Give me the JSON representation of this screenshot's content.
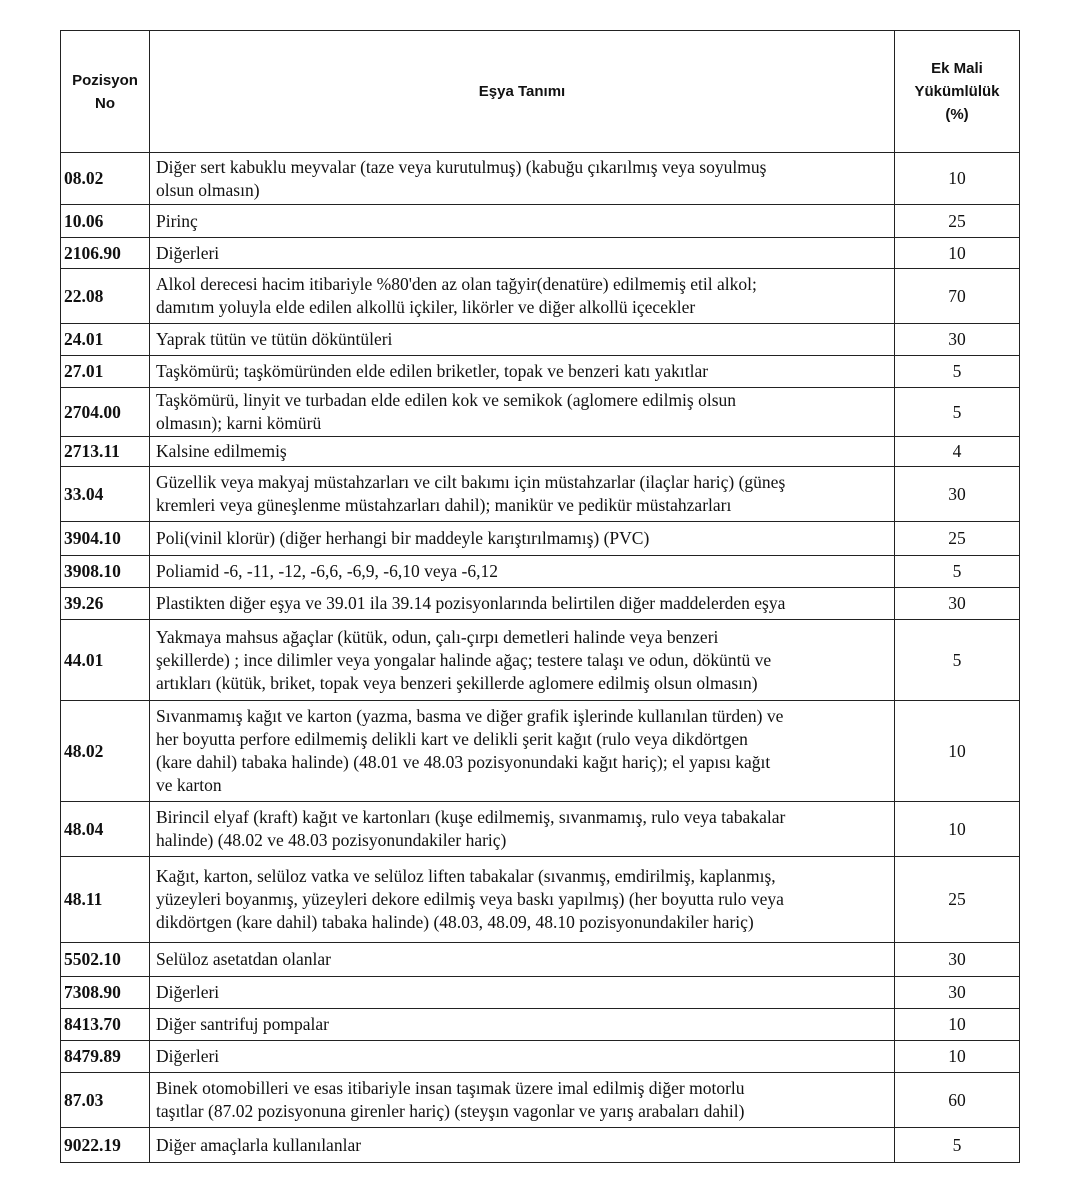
{
  "header": {
    "position_no": "Pozisyon No",
    "description": "Eşya Tanımı",
    "additional_liability": "Ek Mali Yükümlülük (%)"
  },
  "rows": [
    {
      "pos": "08.02",
      "desc": [
        "Diğer sert kabuklu meyvalar (taze veya kurutulmuş) (kabuğu çıkarılmış veya soyulmuş",
        "olsun olmasın)"
      ],
      "pct": "10"
    },
    {
      "pos": "10.06",
      "desc": [
        "Pirinç"
      ],
      "pct": "25"
    },
    {
      "pos": "2106.90",
      "desc": [
        "Diğerleri"
      ],
      "pct": "10"
    },
    {
      "pos": "22.08",
      "desc": [
        "Alkol derecesi hacim itibariyle %80'den az olan tağyir(denatüre) edilmemiş etil alkol;",
        "damıtım yoluyla elde edilen alkollü içkiler, likörler ve diğer alkollü içecekler"
      ],
      "pct": "70"
    },
    {
      "pos": "24.01",
      "desc": [
        "Yaprak tütün ve tütün döküntüleri"
      ],
      "pct": "30"
    },
    {
      "pos": "27.01",
      "desc": [
        "Taşkömürü; taşkömüründen elde edilen briketler, topak ve benzeri katı yakıtlar"
      ],
      "pct": "5"
    },
    {
      "pos": "2704.00",
      "desc": [
        "Taşkömürü, linyit ve turbadan elde edilen kok ve semikok (aglomere edilmiş olsun",
        "olmasın); karni kömürü"
      ],
      "pct": "5"
    },
    {
      "pos": "2713.11",
      "desc": [
        "Kalsine edilmemiş"
      ],
      "pct": "4"
    },
    {
      "pos": "33.04",
      "desc": [
        "Güzellik veya makyaj müstahzarları ve cilt bakımı için müstahzarlar (ilaçlar hariç) (güneş",
        "kremleri veya güneşlenme müstahzarları dahil); manikür ve pedikür müstahzarları"
      ],
      "pct": "30"
    },
    {
      "pos": "3904.10",
      "desc": [
        "Poli(vinil klorür) (diğer herhangi bir maddeyle karıştırılmamış) (PVC)"
      ],
      "pct": "25"
    },
    {
      "pos": "3908.10",
      "desc": [
        "Poliamid -6, -11, -12, -6,6, -6,9, -6,10 veya -6,12"
      ],
      "pct": "5"
    },
    {
      "pos": "39.26",
      "desc": [
        "Plastikten diğer eşya ve 39.01 ila 39.14 pozisyonlarında belirtilen diğer maddelerden eşya"
      ],
      "pct": "30"
    },
    {
      "pos": "44.01",
      "desc": [
        "Yakmaya mahsus ağaçlar (kütük, odun, çalı-çırpı demetleri halinde veya benzeri",
        "şekillerde) ; ince dilimler veya yongalar halinde ağaç; testere talaşı ve odun, döküntü ve",
        "artıkları (kütük, briket, topak veya benzeri şekillerde aglomere edilmiş olsun olmasın)"
      ],
      "pct": "5"
    },
    {
      "pos": "48.02",
      "desc": [
        "Sıvanmamış kağıt ve karton (yazma, basma ve diğer grafik işlerinde kullanılan türden) ve",
        "her boyutta perfore edilmemiş delikli kart ve delikli şerit kağıt (rulo veya dikdörtgen",
        "(kare dahil) tabaka halinde) (48.01 ve 48.03 pozisyonundaki kağıt hariç); el yapısı kağıt",
        "ve karton"
      ],
      "pct": "10"
    },
    {
      "pos": "48.04",
      "desc": [
        "Birincil elyaf (kraft) kağıt ve kartonları (kuşe edilmemiş, sıvanmamış, rulo veya tabakalar",
        "halinde) (48.02 ve 48.03 pozisyonundakiler hariç)"
      ],
      "pct": "10"
    },
    {
      "pos": "48.11",
      "desc": [
        "Kağıt, karton, selüloz vatka ve selüloz liften tabakalar (sıvanmış, emdirilmiş, kaplanmış,",
        "yüzeyleri boyanmış, yüzeyleri dekore edilmiş veya baskı yapılmış) (her boyutta rulo veya",
        "dikdörtgen (kare dahil) tabaka halinde) (48.03, 48.09, 48.10 pozisyonundakiler hariç)"
      ],
      "pct": "25"
    },
    {
      "pos": "5502.10",
      "desc": [
        "Selüloz asetatdan olanlar"
      ],
      "pct": "30"
    },
    {
      "pos": "7308.90",
      "desc": [
        "Diğerleri"
      ],
      "pct": "30"
    },
    {
      "pos": "8413.70",
      "desc": [
        "Diğer santrifuj pompalar"
      ],
      "pct": "10"
    },
    {
      "pos": "8479.89",
      "desc": [
        "Diğerleri"
      ],
      "pct": "10"
    },
    {
      "pos": "87.03",
      "desc": [
        "Binek otomobilleri ve esas itibariyle insan taşımak üzere imal edilmiş diğer motorlu",
        "taşıtlar (87.02 pozisyonuna girenler hariç) (steyşın vagonlar ve yarış arabaları dahil)"
      ],
      "pct": "60"
    },
    {
      "pos": "9022.19",
      "desc": [
        "Diğer amaçlarla kullanılanlar"
      ],
      "pct": "5"
    }
  ]
}
